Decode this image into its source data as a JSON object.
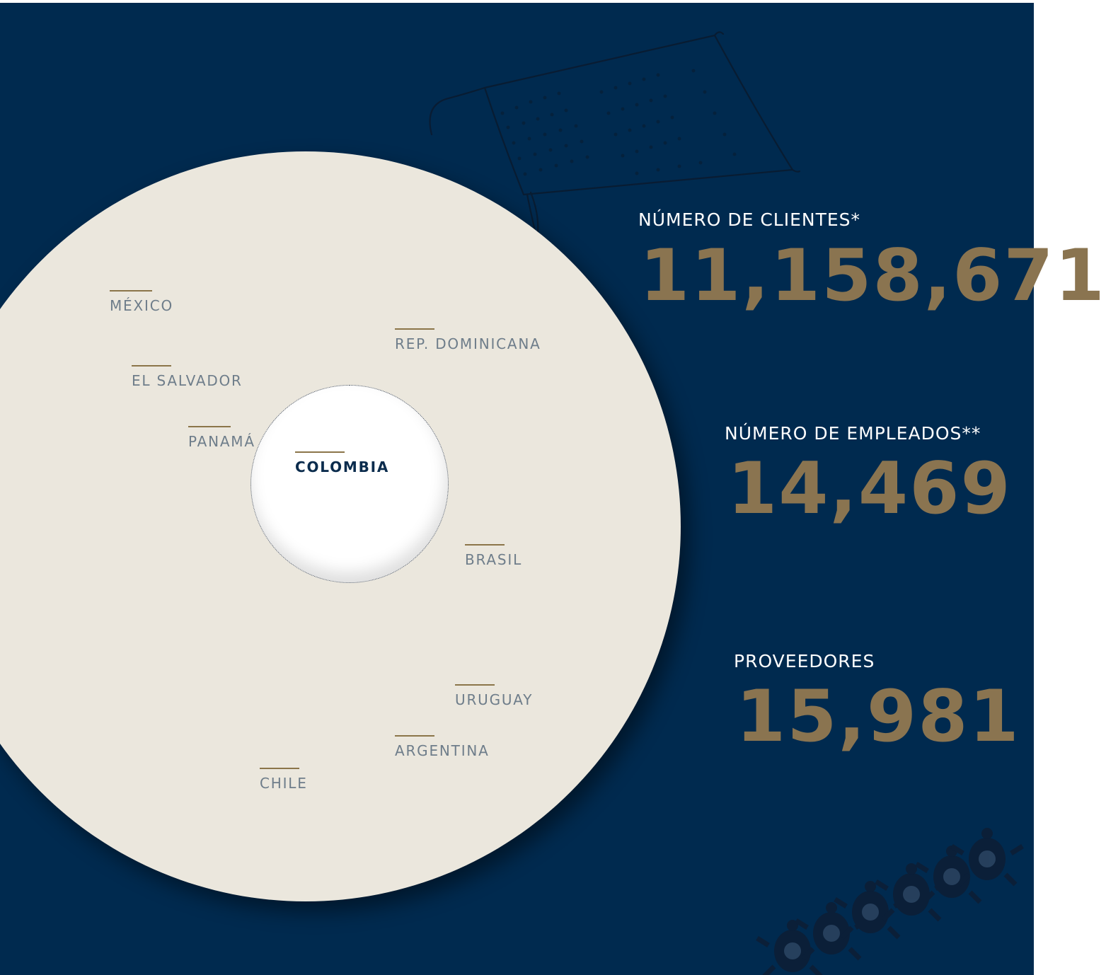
{
  "countries": {
    "mexico": "MÉXICO",
    "rep_dominicana": "REP. DOMINICANA",
    "el_salvador": "EL SALVADOR",
    "panama": "PANAMÁ",
    "colombia": "COLOMBIA",
    "brasil": "BRASIL",
    "uruguay": "URUGUAY",
    "argentina": "ARGENTINA",
    "chile": "CHILE"
  },
  "stats": {
    "clientes": {
      "label": "NÚMERO DE CLIENTES*",
      "value": "11,158,671"
    },
    "empleados": {
      "label": "NÚMERO DE EMPLEADOS**",
      "value": "14,469"
    },
    "proveedores": {
      "label": "PROVEEDORES",
      "value": "15,981"
    }
  },
  "colors": {
    "background": "#002a4f",
    "circle": "#ebe7dd",
    "accent_gold": "#8a7450",
    "country_text": "#6e7d8a"
  },
  "icons": {
    "top_right": "woven-textile-sketch-icon",
    "bottom_right": "turtle-figures-icon"
  }
}
